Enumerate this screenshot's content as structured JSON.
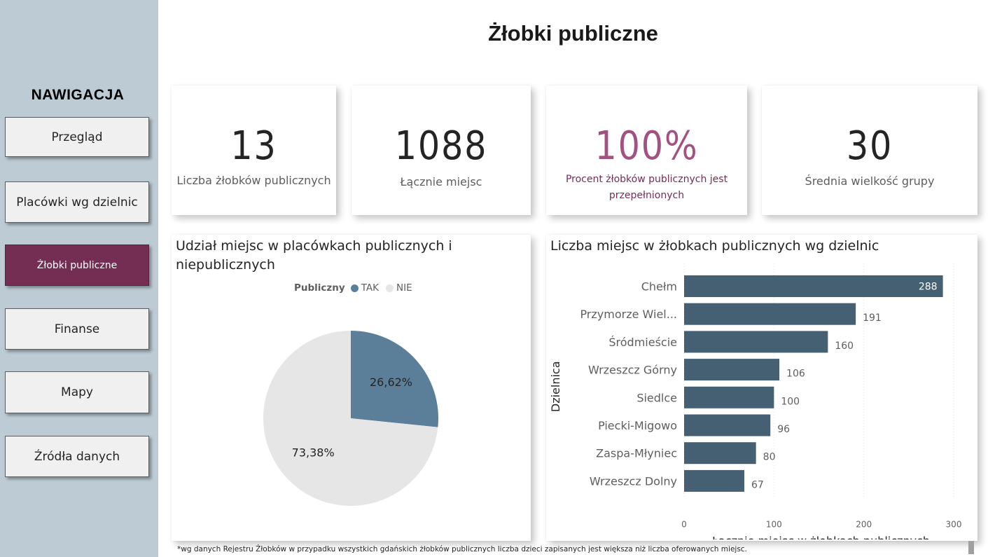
{
  "page_title": "Żłobki publiczne",
  "sidebar": {
    "heading": "NAWIGACJA",
    "items": [
      {
        "label": "Przegląd"
      },
      {
        "label": "Placówki wg dzielnic"
      },
      {
        "label": "Żłobki publiczne",
        "active": true
      },
      {
        "label": "Finanse"
      },
      {
        "label": "Mapy"
      },
      {
        "label": "Źródła danych"
      }
    ]
  },
  "kpis": [
    {
      "value": "13",
      "label": "Liczba żłobków publicznych"
    },
    {
      "value": "1088",
      "label": "Łącznie miejsc"
    },
    {
      "value": "100%",
      "label": "Procent żłobków publicznych jest przepełnionych",
      "color": "#a3527f"
    },
    {
      "value": "30",
      "label": "Średnia wielkość grupy"
    }
  ],
  "pie_card": {
    "title": "Udział miejsc w placówkach publicznych i niepublicznych",
    "legend_title": "Publiczny"
  },
  "bar_card": {
    "title": "Liczba miejsc w żłobkach publicznych wg dzielnic"
  },
  "chart_data": [
    {
      "type": "pie",
      "title": "Udział miejsc w placówkach publicznych i niepublicznych",
      "legend_title": "Publiczny",
      "slices": [
        {
          "name": "TAK",
          "value": 26.62,
          "label": "26,62%",
          "color": "#5b7f99"
        },
        {
          "name": "NIE",
          "value": 73.38,
          "label": "73,38%",
          "color": "#e6e6e6"
        }
      ]
    },
    {
      "type": "bar",
      "orientation": "horizontal",
      "title": "Liczba miejsc w żłobkach publicznych wg dzielnic",
      "categories": [
        "Chełm",
        "Przymorze Wiel...",
        "Śródmieście",
        "Wrzeszcz Górny",
        "Siedlce",
        "Piecki-Migowo",
        "Zaspa-Młyniec",
        "Wrzeszcz Dolny"
      ],
      "values": [
        288,
        191,
        160,
        106,
        100,
        96,
        80,
        67
      ],
      "xlabel": "Łącznie miejsc w żłobkach publicznych",
      "ylabel": "Dzielnica",
      "xlim": [
        0,
        300
      ],
      "xticks": [
        0,
        100,
        200,
        300
      ],
      "bar_color": "#455f73",
      "grid": true
    }
  ],
  "footnote": "*wg danych Rejestru Żłobków w przypadku wszystkich gdańskich żłobków publicznych liczba dzieci zapisanych jest większa niż liczba oferowanych miejsc."
}
